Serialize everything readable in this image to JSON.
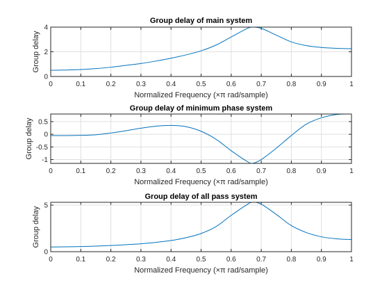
{
  "chart_data": [
    {
      "type": "line",
      "title": "Group delay of main system",
      "xlabel_prefix": "Normalized Frequency  (",
      "xlabel_symbol": "×π",
      "xlabel_suffix": " rad/sample)",
      "ylabel": "Group delay",
      "xlim": [
        0,
        1
      ],
      "ylim": [
        0,
        4
      ],
      "xticks": [
        "0",
        "0.1",
        "0.2",
        "0.3",
        "0.4",
        "0.5",
        "0.6",
        "0.7",
        "0.8",
        "0.9",
        "1"
      ],
      "yticks": [
        {
          "v": 0,
          "label": "0"
        },
        {
          "v": 2,
          "label": "2"
        },
        {
          "v": 4,
          "label": "4"
        }
      ],
      "grid": true,
      "series": [
        {
          "color": "#0072bd",
          "x": [
            0,
            0.05,
            0.1,
            0.15,
            0.2,
            0.25,
            0.3,
            0.35,
            0.4,
            0.45,
            0.5,
            0.55,
            0.6,
            0.65,
            0.67,
            0.7,
            0.75,
            0.8,
            0.85,
            0.9,
            0.95,
            1.0
          ],
          "y": [
            0.5,
            0.52,
            0.56,
            0.64,
            0.75,
            0.9,
            1.05,
            1.25,
            1.48,
            1.75,
            2.08,
            2.55,
            3.2,
            3.85,
            4.0,
            3.9,
            3.35,
            2.8,
            2.5,
            2.35,
            2.28,
            2.25
          ]
        }
      ]
    },
    {
      "type": "line",
      "title": "Group delay of minimum phase system",
      "xlabel_prefix": "Normalized Frequency  (",
      "xlabel_symbol": "×π",
      "xlabel_suffix": " rad/sample)",
      "ylabel": "Group delay",
      "xlim": [
        0,
        1
      ],
      "ylim": [
        -1.15,
        0.8
      ],
      "xticks": [
        "0",
        "0.1",
        "0.2",
        "0.3",
        "0.4",
        "0.5",
        "0.6",
        "0.7",
        "0.8",
        "0.9",
        "1"
      ],
      "yticks": [
        {
          "v": 0.5,
          "label": "0.5"
        },
        {
          "v": 0,
          "label": "0"
        },
        {
          "v": -0.5,
          "label": "-0.5"
        },
        {
          "v": -1,
          "label": "-1"
        }
      ],
      "grid": true,
      "series": [
        {
          "color": "#0072bd",
          "x": [
            0,
            0.05,
            0.1,
            0.15,
            0.2,
            0.25,
            0.3,
            0.35,
            0.4,
            0.45,
            0.5,
            0.55,
            0.6,
            0.65,
            0.67,
            0.7,
            0.75,
            0.8,
            0.85,
            0.9,
            0.95,
            1.0
          ],
          "y": [
            -0.05,
            -0.05,
            -0.04,
            -0.02,
            0.05,
            0.14,
            0.24,
            0.32,
            0.35,
            0.3,
            0.12,
            -0.2,
            -0.65,
            -1.05,
            -1.15,
            -1.0,
            -0.55,
            -0.05,
            0.4,
            0.65,
            0.78,
            0.8
          ]
        }
      ]
    },
    {
      "type": "line",
      "title": "Group delay of all pass system",
      "xlabel_prefix": "Normalized Frequency  (",
      "xlabel_symbol": "×π",
      "xlabel_suffix": " rad/sample)",
      "ylabel": "Group delay",
      "xlim": [
        0,
        1
      ],
      "ylim": [
        0,
        5.3
      ],
      "xticks": [
        "0",
        "0.1",
        "0.2",
        "0.3",
        "0.4",
        "0.5",
        "0.6",
        "0.7",
        "0.8",
        "0.9",
        "1"
      ],
      "yticks": [
        {
          "v": 0,
          "label": "0"
        },
        {
          "v": 5,
          "label": "5"
        }
      ],
      "grid": true,
      "series": [
        {
          "color": "#0072bd",
          "x": [
            0,
            0.05,
            0.1,
            0.15,
            0.2,
            0.25,
            0.3,
            0.35,
            0.4,
            0.45,
            0.5,
            0.55,
            0.6,
            0.65,
            0.67,
            0.7,
            0.75,
            0.8,
            0.85,
            0.9,
            0.95,
            1.0
          ],
          "y": [
            0.5,
            0.52,
            0.55,
            0.6,
            0.66,
            0.75,
            0.85,
            1.0,
            1.2,
            1.5,
            1.95,
            2.7,
            3.9,
            5.0,
            5.3,
            5.1,
            4.0,
            2.8,
            2.05,
            1.6,
            1.38,
            1.3
          ]
        }
      ]
    }
  ]
}
